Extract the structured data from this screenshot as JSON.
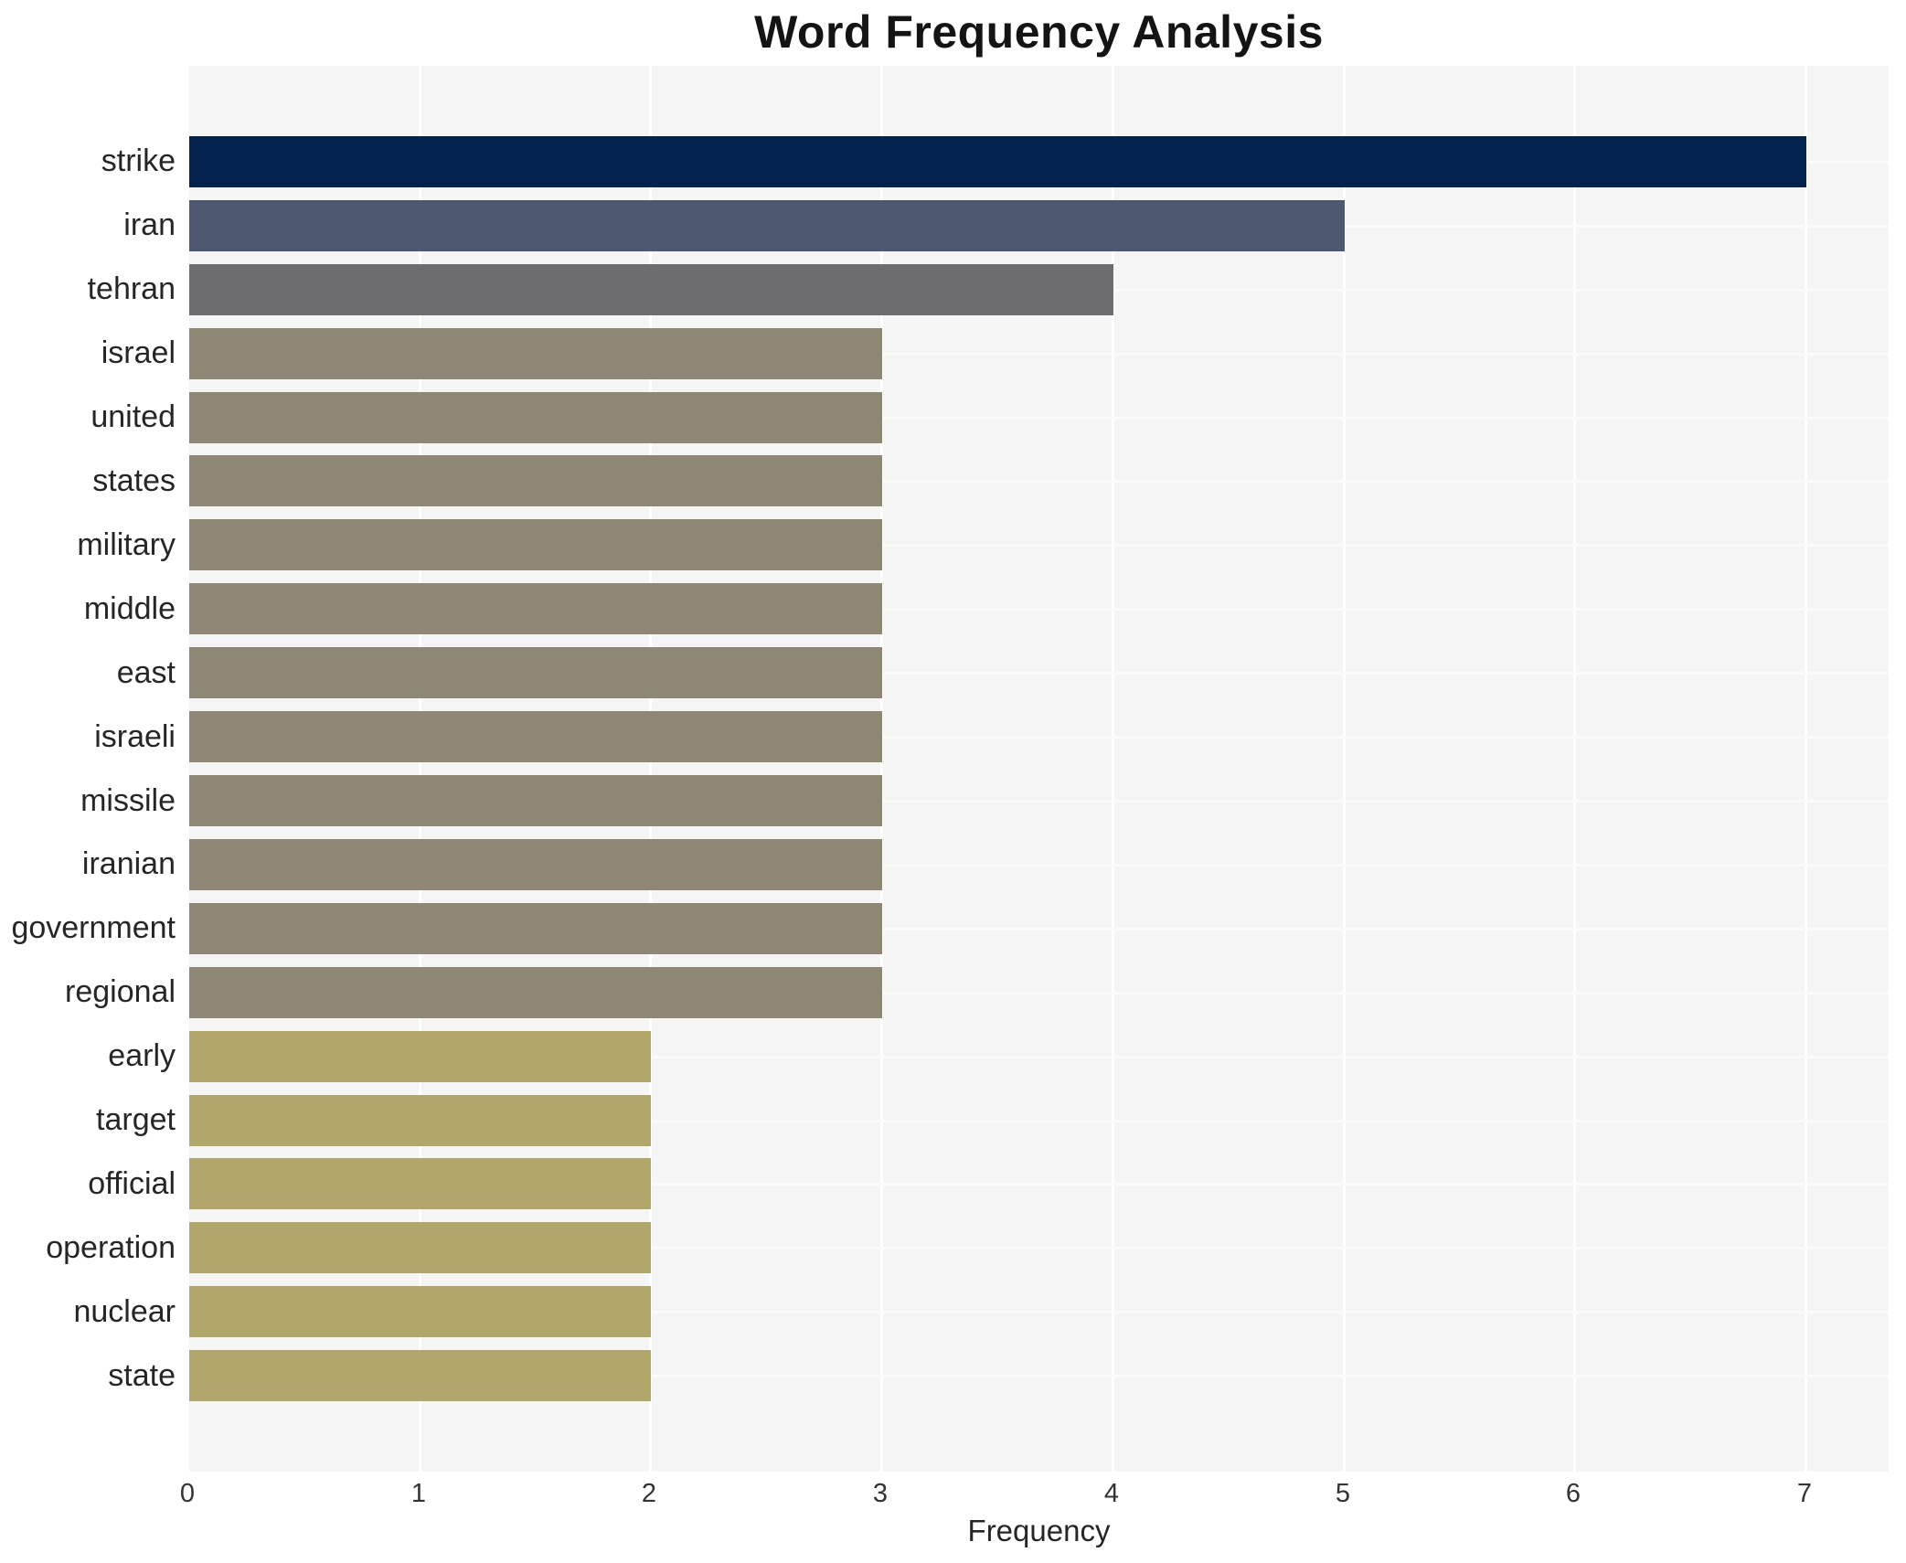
{
  "chart_data": {
    "type": "bar",
    "orientation": "horizontal",
    "title": "Word Frequency Analysis",
    "xlabel": "Frequency",
    "ylabel": "",
    "categories": [
      "strike",
      "iran",
      "tehran",
      "israel",
      "united",
      "states",
      "military",
      "middle",
      "east",
      "israeli",
      "missile",
      "iranian",
      "government",
      "regional",
      "early",
      "target",
      "official",
      "operation",
      "nuclear",
      "state"
    ],
    "values": [
      7,
      5,
      4,
      3,
      3,
      3,
      3,
      3,
      3,
      3,
      3,
      3,
      3,
      3,
      2,
      2,
      2,
      2,
      2,
      2
    ],
    "bar_colors": [
      "#02234d",
      "#4d5770",
      "#6c6c71",
      "#8e8775",
      "#8e8775",
      "#8e8775",
      "#8e8775",
      "#8e8775",
      "#8e8775",
      "#8e8775",
      "#8e8775",
      "#8e8775",
      "#8e8775",
      "#8e8775",
      "#b1a76a",
      "#b1a76a",
      "#b1a76a",
      "#b1a76a",
      "#b1a76a",
      "#b1a76a"
    ],
    "x_ticks": [
      "0",
      "1",
      "2",
      "3",
      "4",
      "5",
      "6",
      "7"
    ],
    "xlim": [
      0,
      7.35
    ],
    "grid": true,
    "legend_position": "none",
    "plot_background": "#f5f5f6",
    "grid_color": "#ffffff"
  }
}
